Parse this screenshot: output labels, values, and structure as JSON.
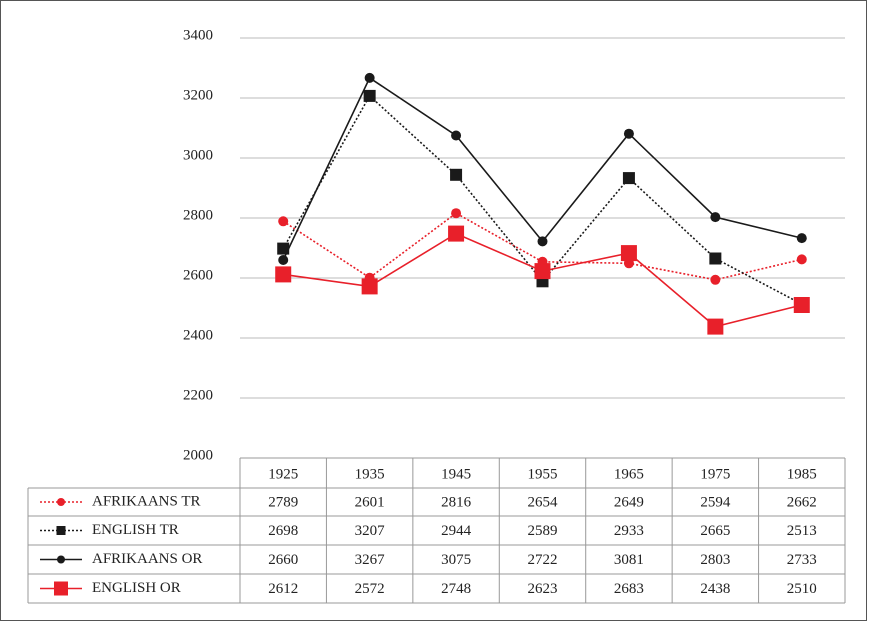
{
  "chart_data": {
    "type": "line",
    "categories": [
      "1925",
      "1935",
      "1945",
      "1955",
      "1965",
      "1975",
      "1985"
    ],
    "series": [
      {
        "name": "AFRIKAANS TR",
        "color": "#e8202a",
        "line": "dotted",
        "marker": "circle",
        "values": [
          2789,
          2601,
          2816,
          2654,
          2649,
          2594,
          2662
        ]
      },
      {
        "name": "ENGLISH TR",
        "color": "#1a1a1a",
        "line": "dotted",
        "marker": "square",
        "values": [
          2698,
          3207,
          2944,
          2589,
          2933,
          2665,
          2513
        ]
      },
      {
        "name": "AFRIKAANS OR",
        "color": "#1a1a1a",
        "line": "solid",
        "marker": "circle",
        "values": [
          2660,
          3267,
          3075,
          2722,
          3081,
          2803,
          2733
        ]
      },
      {
        "name": "ENGLISH OR",
        "color": "#e8202a",
        "line": "solid",
        "marker": "big-square",
        "values": [
          2612,
          2572,
          2748,
          2623,
          2683,
          2438,
          2510
        ]
      }
    ],
    "ylim": [
      2000,
      3400
    ],
    "yticks": [
      2000,
      2200,
      2400,
      2600,
      2800,
      3000,
      3200,
      3400
    ],
    "grid": true,
    "data_table": true
  }
}
